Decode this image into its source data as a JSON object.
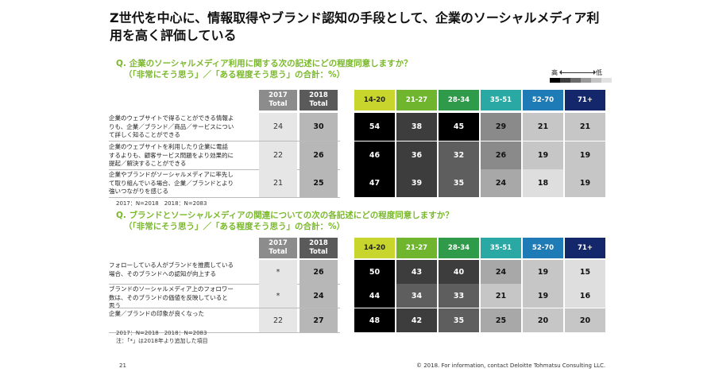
{
  "title": "Z世代を中心に、情報取得やブランド認知の手段として、企業のソーシャルメディア利用を高く評価している",
  "legend": {
    "high": "高",
    "low": "低",
    "swatch_colors": [
      "#000000",
      "#3d3d3d",
      "#6a6a6a",
      "#9a9a9a",
      "#c4c4c4",
      "#e2e2e2"
    ]
  },
  "section1": {
    "question_line1": "Q. 企業のソーシャルメディア利用に関する次の記述にどの程度同意しますか？",
    "question_line2": "（「非常にそう思う」／「ある程度そう思う」の合計：%）",
    "total_headers": [
      "2017 Total",
      "2018 Total"
    ],
    "age_headers": [
      "14-20",
      "21-27",
      "28-34",
      "35-51",
      "52-70",
      "71+"
    ],
    "rows": [
      {
        "label_lines": [
          "企業のウェブサイトで得ることができる情報よ",
          "りも、企業／ブランド／商品／サービスについ",
          "て詳しく知ることができる"
        ],
        "t2017": "24",
        "t2018": "30",
        "ages": [
          "54",
          "38",
          "45",
          "29",
          "21",
          "21"
        ]
      },
      {
        "label_lines": [
          "企業のウェブサイトを利用したり企業に電話",
          "するよりも、顧客サービス問題をより効果的に",
          "提起／解決することができる"
        ],
        "t2017": "22",
        "t2018": "26",
        "ages": [
          "46",
          "36",
          "32",
          "26",
          "19",
          "19"
        ]
      },
      {
        "label_lines": [
          "企業やブランドがソーシャルメディアに率先し",
          "て取り組んでいる場合、企業／ブランドとより",
          "強いつながりを感じる"
        ],
        "t2017": "21",
        "t2018": "25",
        "ages": [
          "47",
          "39",
          "35",
          "24",
          "18",
          "19"
        ]
      }
    ],
    "note": "2017：N=2018　2018：N=2083"
  },
  "section2": {
    "question_line1": "Q. ブランドとソーシャルメディアの関連についての次の各記述にどの程度同意しますか？",
    "question_line2": "（「非常にそう思う」／「ある程度そう思う」の合計：%）",
    "total_headers": [
      "2017 Total",
      "2018 Total"
    ],
    "age_headers": [
      "14-20",
      "21-27",
      "28-34",
      "35-51",
      "52-70",
      "71+"
    ],
    "rows": [
      {
        "label_lines": [
          "フォローしている人がブランドを推薦している",
          "場合、そのブランドへの認知が向上する"
        ],
        "t2017": "*",
        "t2018": "26",
        "ages": [
          "50",
          "43",
          "40",
          "24",
          "19",
          "15"
        ]
      },
      {
        "label_lines": [
          "ブランドのソーシャルメディア上のフォロワー",
          "数は、そのブランドの価値を反映していると",
          "思う"
        ],
        "t2017": "*",
        "t2018": "24",
        "ages": [
          "44",
          "34",
          "33",
          "21",
          "19",
          "16"
        ]
      },
      {
        "label_lines": [
          "企業／ブランドの印象が良くなった"
        ],
        "t2017": "22",
        "t2018": "27",
        "ages": [
          "48",
          "42",
          "35",
          "25",
          "20",
          "20"
        ]
      }
    ],
    "note1": "2017：N=2018　2018：N=2083",
    "note2": "注：「*」は2018年より追加した項目"
  },
  "age_header_colors": [
    "#c7d52c",
    "#6fb52e",
    "#2f9a49",
    "#2aa8a3",
    "#1e7bb5",
    "#14276b"
  ],
  "footer": {
    "page": "21",
    "copyright": "© 2018. For information, contact Deloitte Tohmatsu Consulting LLC."
  }
}
